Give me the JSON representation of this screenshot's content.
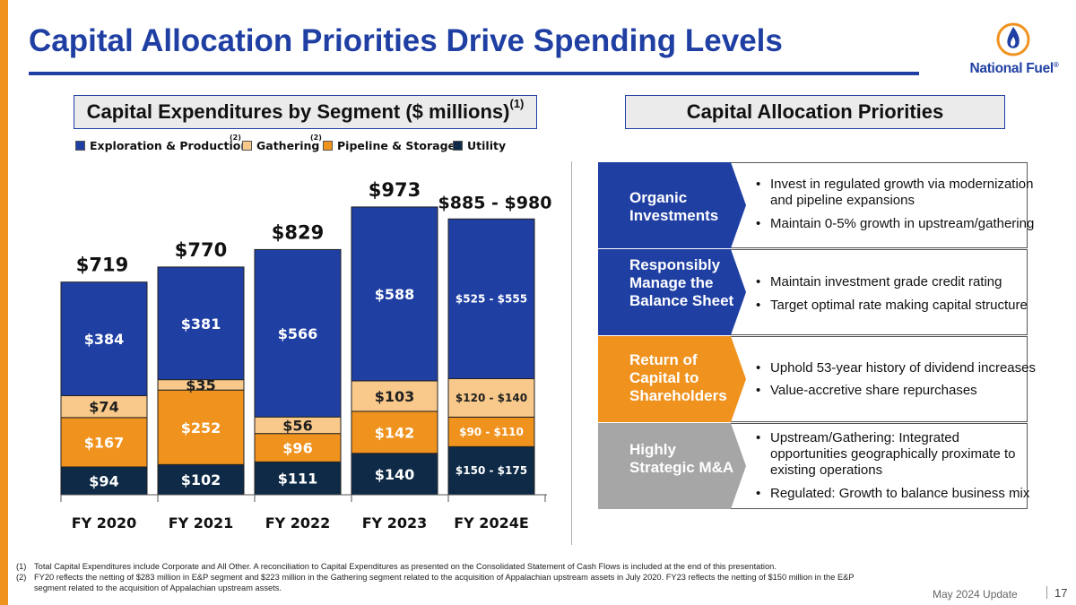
{
  "slide": {
    "title": "Capital Allocation Priorities Drive Spending Levels",
    "logo_text": "National Fuel",
    "logo_registered": "®",
    "footer_date": "May 2024 Update",
    "page_number": "17"
  },
  "colors": {
    "brand_blue": "#1F3FA3",
    "accent_orange": "#F0921E",
    "gathering": "#F9C98B",
    "utility": "#0E2A47",
    "gray_card": "#A6A6A6"
  },
  "left_panel": {
    "header": "Capital Expenditures by Segment ($ millions)",
    "header_sup": "(1)"
  },
  "right_panel": {
    "header": "Capital Allocation Priorities",
    "priorities": [
      {
        "label": "Organic Investments",
        "color": "#1F3FA3",
        "bullets": [
          "Invest in regulated growth via modernization and pipeline expansions",
          "Maintain 0-5% growth in upstream/gathering"
        ]
      },
      {
        "label": "Responsibly Manage the Balance Sheet",
        "color": "#1F3FA3",
        "bullets": [
          "Maintain investment grade credit rating",
          "Target optimal rate making capital structure"
        ]
      },
      {
        "label": "Return of Capital to Shareholders",
        "color": "#F0921E",
        "bullets": [
          "Uphold 53-year history of dividend increases",
          "Value-accretive share repurchases"
        ]
      },
      {
        "label": "Highly Strategic M&A",
        "color": "#A6A6A6",
        "bullets": [
          "Upstream/Gathering: Integrated opportunities geographically proximate to existing operations",
          "Regulated: Growth to balance business mix"
        ]
      }
    ]
  },
  "chart_data": {
    "type": "bar",
    "stacked": true,
    "title": "Capital Expenditures by Segment ($ millions)",
    "categories": [
      "FY 2020",
      "FY 2021",
      "FY 2022",
      "FY 2023",
      "FY 2024E"
    ],
    "series": [
      {
        "name": "Utility",
        "color": "#0E2A47",
        "values": [
          94,
          102,
          111,
          140,
          162.5
        ],
        "labels": [
          "$94",
          "$102",
          "$111",
          "$140",
          "$150 - $175"
        ]
      },
      {
        "name": "Pipeline & Storage",
        "color": "#F0921E",
        "values": [
          167,
          252,
          96,
          142,
          100
        ],
        "labels": [
          "$167",
          "$252",
          "$96",
          "$142",
          "$90 - $110"
        ]
      },
      {
        "name": "Gathering",
        "note": "(2)",
        "color": "#F9C98B",
        "values": [
          74,
          35,
          56,
          103,
          130
        ],
        "labels": [
          "$74",
          "$35",
          "$56",
          "$103",
          "$120 - $140"
        ]
      },
      {
        "name": "Exploration & Production",
        "note": "(2)",
        "color": "#1F3FA3",
        "values": [
          384,
          381,
          566,
          588,
          540
        ],
        "labels": [
          "$384",
          "$381",
          "$566",
          "$588",
          "$525 - $555"
        ]
      }
    ],
    "totals": [
      719,
      770,
      829,
      973,
      932.5
    ],
    "total_labels": [
      "$719",
      "$770",
      "$829",
      "$973",
      "$885 - $980"
    ],
    "legend_order": [
      3,
      2,
      1,
      0
    ],
    "ylim": [
      0,
      1000
    ],
    "xlabel": "",
    "ylabel": ""
  },
  "footnotes": [
    {
      "num": "(1)",
      "text": "Total Capital Expenditures include Corporate and All Other. A reconciliation to Capital Expenditures as presented on the Consolidated Statement of Cash Flows is included at the end of this presentation."
    },
    {
      "num": "(2)",
      "text": "FY20 reflects the netting of $283 million in E&P segment and $223 million in the Gathering segment related to the acquisition of Appalachian upstream assets in July 2020. FY23 reflects the netting of $150 million in the E&P segment related to the acquisition of Appalachian upstream assets."
    }
  ]
}
